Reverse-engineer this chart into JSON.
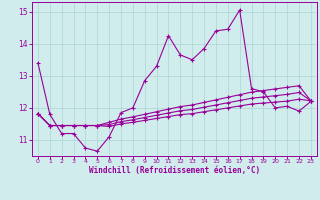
{
  "x": [
    0,
    1,
    2,
    3,
    4,
    5,
    6,
    7,
    8,
    9,
    10,
    11,
    12,
    13,
    14,
    15,
    16,
    17,
    18,
    19,
    20,
    21,
    22,
    23
  ],
  "main_line": [
    13.4,
    11.8,
    11.2,
    11.2,
    10.75,
    10.65,
    11.1,
    11.85,
    12.0,
    12.85,
    13.3,
    14.25,
    13.65,
    13.5,
    13.85,
    14.4,
    14.45,
    15.05,
    12.6,
    12.5,
    12.0,
    12.05,
    11.9,
    12.2
  ],
  "reg1": [
    11.82,
    11.45,
    11.45,
    11.45,
    11.45,
    11.45,
    11.55,
    11.65,
    11.72,
    11.8,
    11.88,
    11.96,
    12.04,
    12.09,
    12.17,
    12.25,
    12.33,
    12.41,
    12.49,
    12.54,
    12.59,
    12.64,
    12.69,
    12.22
  ],
  "reg2": [
    11.82,
    11.45,
    11.45,
    11.45,
    11.45,
    11.45,
    11.48,
    11.57,
    11.63,
    11.7,
    11.77,
    11.84,
    11.91,
    11.95,
    12.02,
    12.09,
    12.16,
    12.23,
    12.3,
    12.34,
    12.38,
    12.42,
    12.48,
    12.22
  ],
  "reg3": [
    11.82,
    11.45,
    11.45,
    11.45,
    11.45,
    11.45,
    11.42,
    11.5,
    11.55,
    11.61,
    11.67,
    11.73,
    11.79,
    11.82,
    11.88,
    11.94,
    12.0,
    12.06,
    12.12,
    12.15,
    12.18,
    12.21,
    12.27,
    12.22
  ],
  "line_color": "#990099",
  "bg_color": "#d0ecec",
  "grid_color": "#b0d8d8",
  "xlabel": "Windchill (Refroidissement éolien,°C)",
  "ylim": [
    10.5,
    15.3
  ],
  "xlim": [
    -0.5,
    23.5
  ],
  "yticks": [
    11,
    12,
    13,
    14,
    15
  ],
  "xticks": [
    0,
    1,
    2,
    3,
    4,
    5,
    6,
    7,
    8,
    9,
    10,
    11,
    12,
    13,
    14,
    15,
    16,
    17,
    18,
    19,
    20,
    21,
    22,
    23
  ]
}
